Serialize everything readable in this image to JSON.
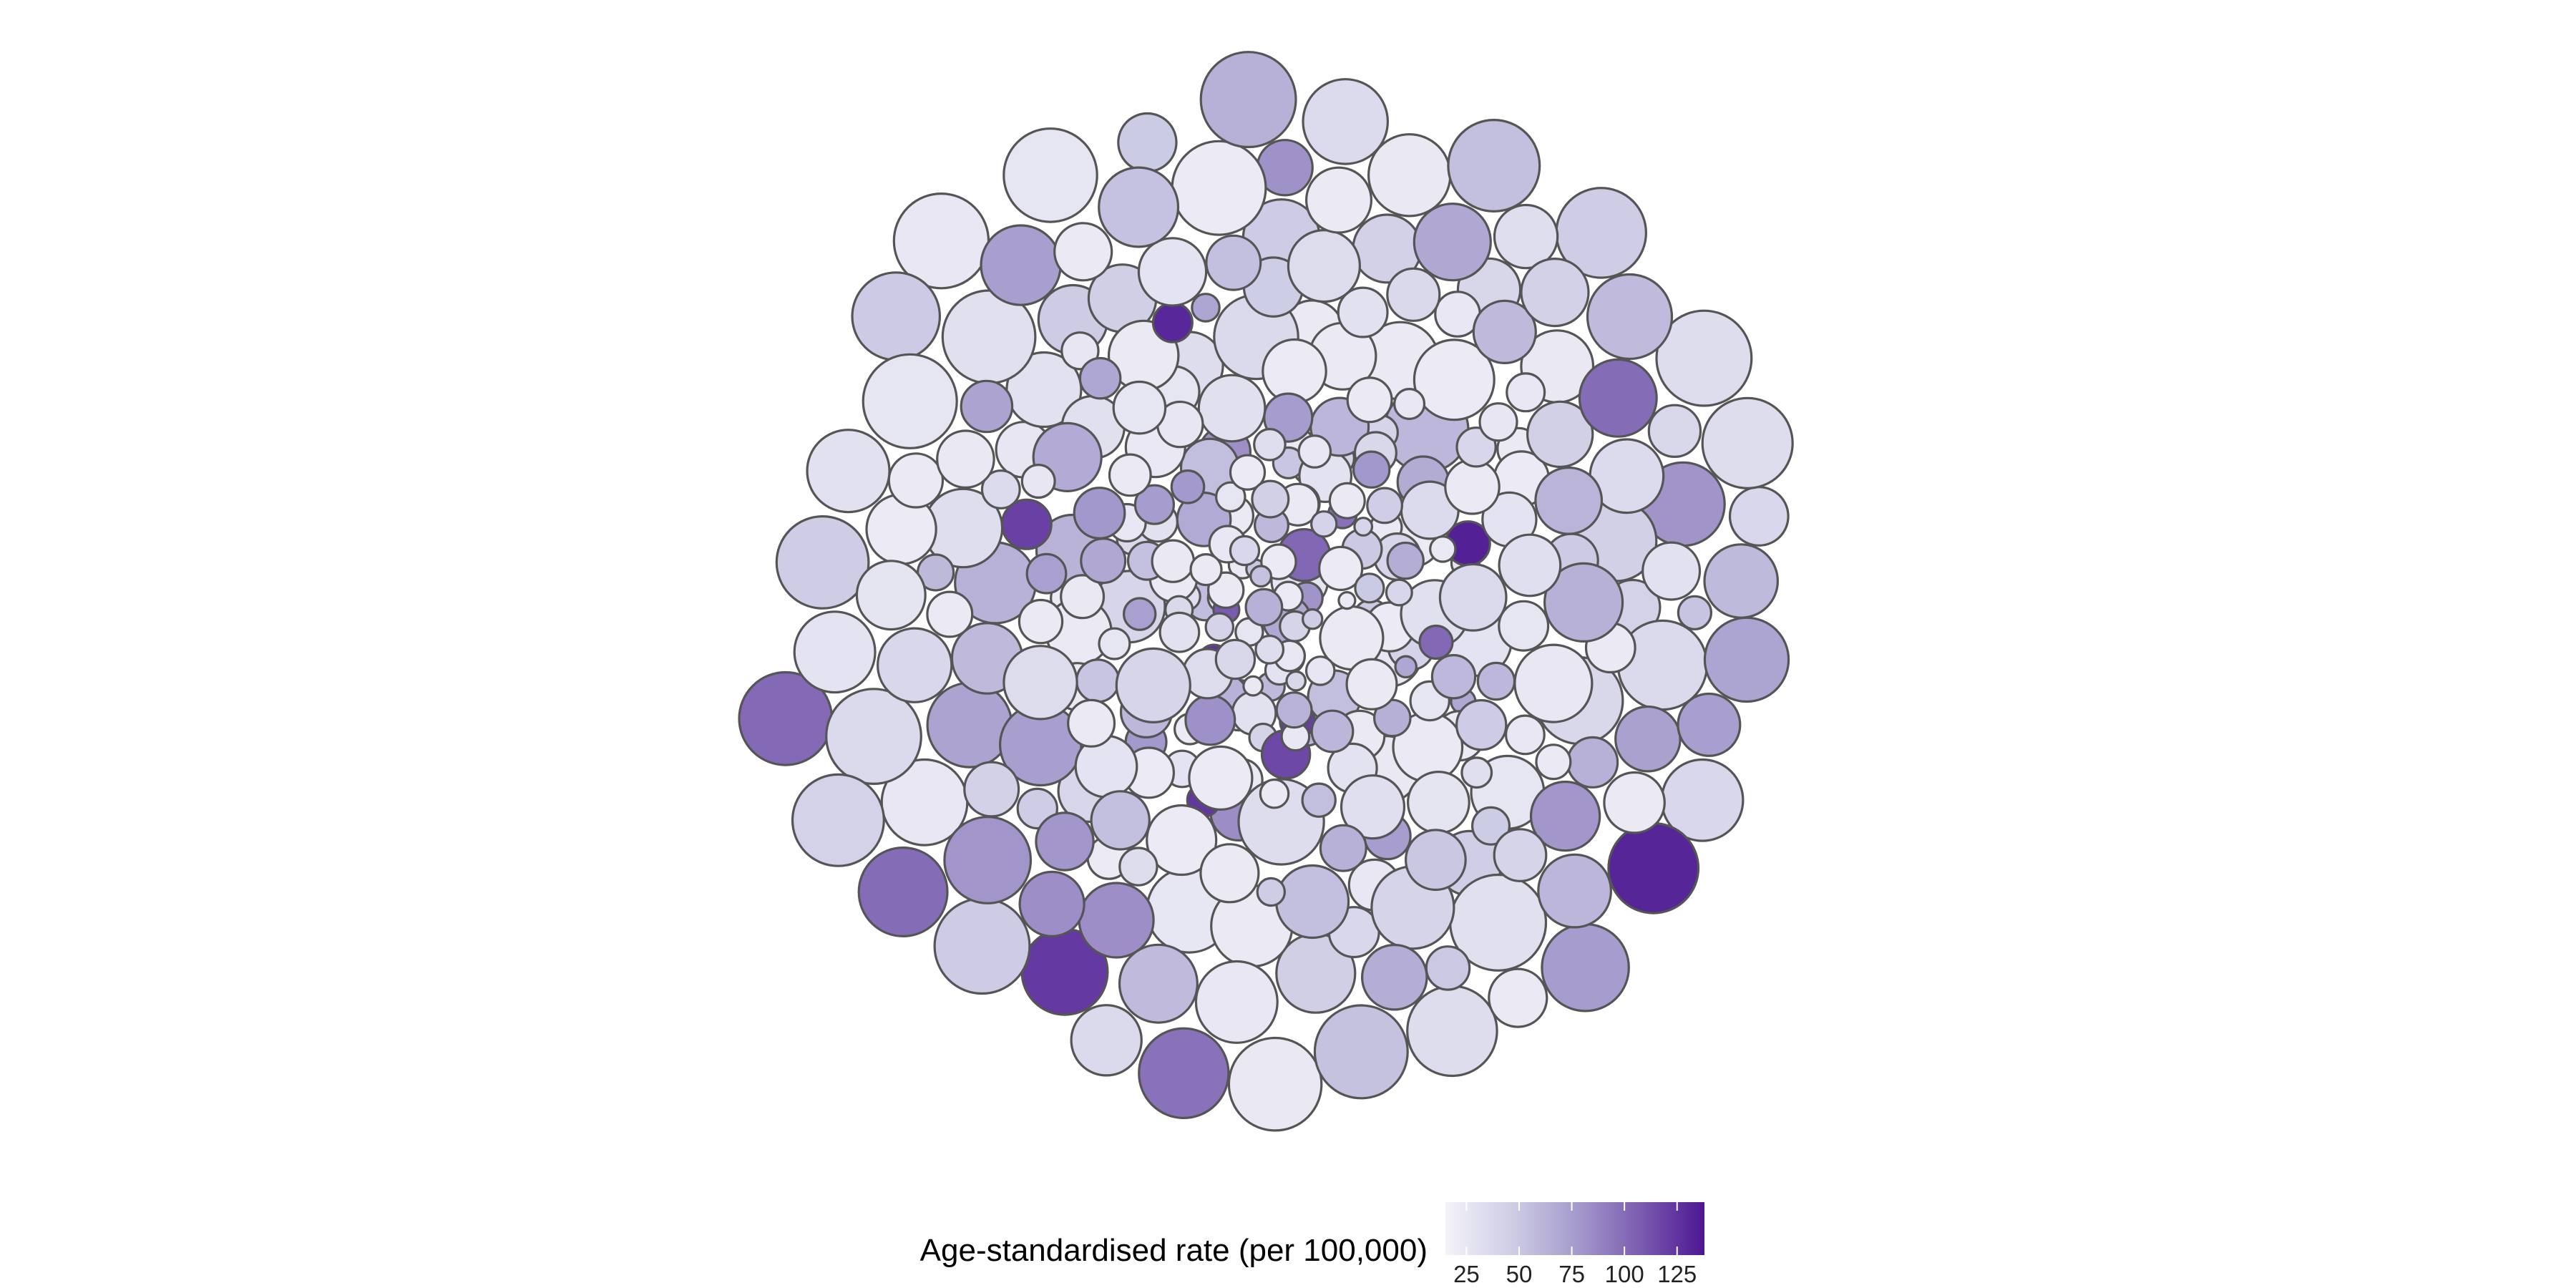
{
  "chart_data": {
    "type": "packed-bubble",
    "title": "",
    "legend": {
      "title": "Age-standardised rate (per 100,000)",
      "placement": "bottom-center",
      "min": 15,
      "max": 138,
      "ticks": [
        25,
        50,
        75,
        100,
        125
      ],
      "tick_labels": [
        "25",
        "50",
        "75",
        "100",
        "125"
      ],
      "colors": [
        "#f4f3f9",
        "#cfcee6",
        "#a69ccd",
        "#7b5db0",
        "#4d1692"
      ]
    },
    "bubble_count": 321
  }
}
